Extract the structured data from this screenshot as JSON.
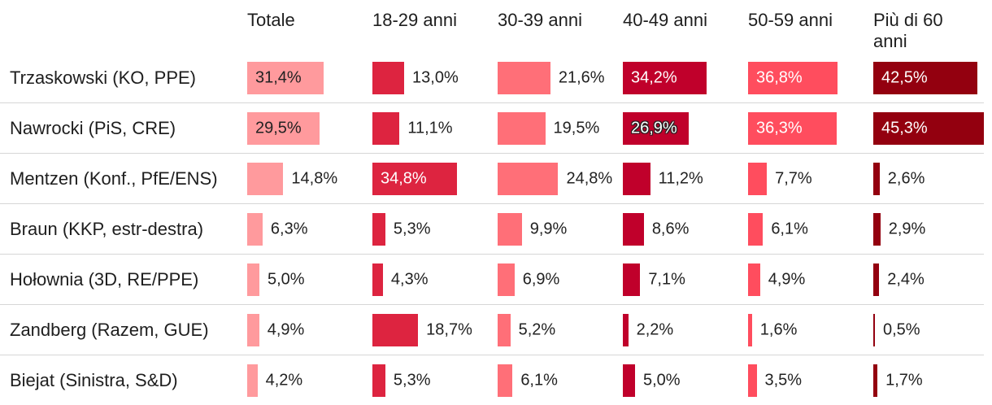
{
  "chart_data": {
    "type": "table",
    "columns": [
      {
        "label": "Totale",
        "color": "#ff9a9d"
      },
      {
        "label": "18-29 anni",
        "color": "#dd2440"
      },
      {
        "label": "30-39 anni",
        "color": "#ff6f78"
      },
      {
        "label": "40-49 anni",
        "color": "#c0002b"
      },
      {
        "label": "50-59 anni",
        "color": "#ff4d5e"
      },
      {
        "label": "Più di 60 anni",
        "color": "#93000f"
      }
    ],
    "rows": [
      {
        "label": "Trzaskowski (KO, PPE)",
        "values": [
          31.4,
          13.0,
          21.6,
          34.2,
          36.8,
          42.5
        ],
        "display": [
          "31,4%",
          "13,0%",
          "21,6%",
          "34,2%",
          "36,8%",
          "42,5%"
        ]
      },
      {
        "label": "Nawrocki (PiS, CRE)",
        "values": [
          29.5,
          11.1,
          19.5,
          26.9,
          36.3,
          45.3
        ],
        "display": [
          "29,5%",
          "11,1%",
          "19,5%",
          "26,9%",
          "36,3%",
          "45,3%"
        ]
      },
      {
        "label": "Mentzen (Konf., PfE/ENS)",
        "values": [
          14.8,
          34.8,
          24.8,
          11.2,
          7.7,
          2.6
        ],
        "display": [
          "14,8%",
          "34,8%",
          "24,8%",
          "11,2%",
          "7,7%",
          "2,6%"
        ]
      },
      {
        "label": "Braun (KKP, estr-destra)",
        "values": [
          6.3,
          5.3,
          9.9,
          8.6,
          6.1,
          2.9
        ],
        "display": [
          "6,3%",
          "5,3%",
          "9,9%",
          "8,6%",
          "6,1%",
          "2,9%"
        ]
      },
      {
        "label": "Hołownia (3D, RE/PPE)",
        "values": [
          5.0,
          4.3,
          6.9,
          7.1,
          4.9,
          2.4
        ],
        "display": [
          "5,0%",
          "4,3%",
          "6,9%",
          "7,1%",
          "4,9%",
          "2,4%"
        ]
      },
      {
        "label": "Zandberg (Razem, GUE)",
        "values": [
          4.9,
          18.7,
          5.2,
          2.2,
          1.6,
          0.5
        ],
        "display": [
          "4,9%",
          "18,7%",
          "5,2%",
          "2,2%",
          "1,6%",
          "0,5%"
        ]
      },
      {
        "label": "Biejat (Sinistra, S&D)",
        "values": [
          4.2,
          5.3,
          6.1,
          5.0,
          3.5,
          1.7
        ],
        "display": [
          "4,2%",
          "5,3%",
          "6,1%",
          "5,0%",
          "3,5%",
          "1,7%"
        ]
      }
    ],
    "max_value": 45.3,
    "grid": false,
    "legend": "none"
  }
}
